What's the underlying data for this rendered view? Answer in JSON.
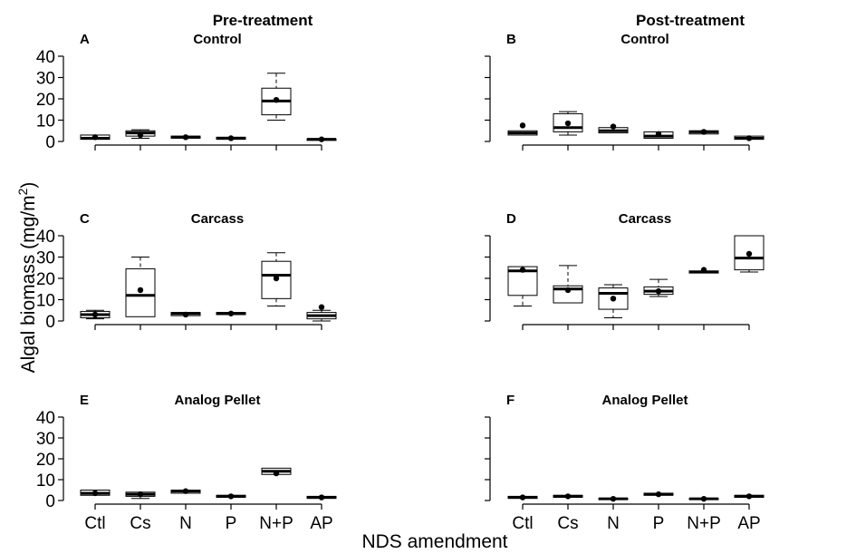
{
  "figure": {
    "ylabel": "Algal biomass (mg/m",
    "ylabel_sup": "2",
    "ylabel_close": ")",
    "xlabel": "NDS amendment",
    "col_titles": [
      "Pre-treatment",
      "Post-treatment"
    ]
  },
  "chart_data": [
    {
      "type": "box",
      "panel": "A",
      "title": "Control",
      "categories": [
        "Ctl",
        "Cs",
        "N",
        "P",
        "N+P",
        "AP"
      ],
      "ylim": [
        0,
        40
      ],
      "yticks": [
        0,
        10,
        20,
        30,
        40
      ],
      "boxes": [
        {
          "min": 1,
          "q1": 1,
          "median": 1.5,
          "q3": 3,
          "max": 3,
          "mean": 2
        },
        {
          "min": 1.5,
          "q1": 2.5,
          "median": 4,
          "q3": 5,
          "max": 5.5,
          "mean": 3
        },
        {
          "min": 1.5,
          "q1": 1.5,
          "median": 2,
          "q3": 2.5,
          "max": 2.5,
          "mean": 2
        },
        {
          "min": 1,
          "q1": 1,
          "median": 1.5,
          "q3": 2,
          "max": 2,
          "mean": 1.5
        },
        {
          "min": 10,
          "q1": 12.5,
          "median": 19,
          "q3": 25,
          "max": 32,
          "mean": 19.5
        },
        {
          "min": 0.5,
          "q1": 0.5,
          "median": 1,
          "q3": 1.2,
          "max": 1.2,
          "mean": 1
        }
      ]
    },
    {
      "type": "box",
      "panel": "B",
      "title": "Control",
      "categories": [
        "Ctl",
        "Cs",
        "N",
        "P",
        "N+P",
        "AP"
      ],
      "ylim": [
        0,
        40
      ],
      "yticks": [
        0,
        10,
        20,
        30,
        40
      ],
      "boxes": [
        {
          "min": 3,
          "q1": 3,
          "median": 4,
          "q3": 5,
          "max": 5,
          "mean": 7.5
        },
        {
          "min": 3,
          "q1": 4.5,
          "median": 6.5,
          "q3": 13,
          "max": 14,
          "mean": 8.5
        },
        {
          "min": 4,
          "q1": 4,
          "median": 5,
          "q3": 6.5,
          "max": 6.5,
          "mean": 7
        },
        {
          "min": 1.5,
          "q1": 1.5,
          "median": 2.5,
          "q3": 4.5,
          "max": 4.5,
          "mean": 3.5
        },
        {
          "min": 3.5,
          "q1": 3.5,
          "median": 4.5,
          "q3": 5,
          "max": 5,
          "mean": 4.5
        },
        {
          "min": 1,
          "q1": 1,
          "median": 1.5,
          "q3": 2.5,
          "max": 2.5,
          "mean": 1.5
        }
      ]
    },
    {
      "type": "box",
      "panel": "C",
      "title": "Carcass",
      "categories": [
        "Ctl",
        "Cs",
        "N",
        "P",
        "N+P",
        "AP"
      ],
      "ylim": [
        0,
        40
      ],
      "yticks": [
        0,
        10,
        20,
        30,
        40
      ],
      "boxes": [
        {
          "min": 1,
          "q1": 1.5,
          "median": 3,
          "q3": 4.5,
          "max": 5,
          "mean": 3
        },
        {
          "min": 2,
          "q1": 2,
          "median": 12,
          "q3": 24.5,
          "max": 30,
          "mean": 14.5
        },
        {
          "min": 2.5,
          "q1": 2.5,
          "median": 3.5,
          "q3": 4,
          "max": 4,
          "mean": 3
        },
        {
          "min": 3,
          "q1": 3,
          "median": 3.5,
          "q3": 4,
          "max": 4,
          "mean": 3.5
        },
        {
          "min": 7,
          "q1": 10.5,
          "median": 21.5,
          "q3": 28,
          "max": 32,
          "mean": 20
        },
        {
          "min": 0,
          "q1": 1,
          "median": 2.5,
          "q3": 4,
          "max": 5,
          "mean": 6.5
        }
      ]
    },
    {
      "type": "box",
      "panel": "D",
      "title": "Carcass",
      "categories": [
        "Ctl",
        "Cs",
        "N",
        "P",
        "N+P",
        "AP"
      ],
      "ylim": [
        0,
        40
      ],
      "yticks": [
        0,
        10,
        20,
        30,
        40
      ],
      "boxes": [
        {
          "min": 7,
          "q1": 12,
          "median": 23.5,
          "q3": 25.5,
          "max": 25.5,
          "mean": 24
        },
        {
          "min": 8.5,
          "q1": 8.5,
          "median": 15,
          "q3": 16.5,
          "max": 26,
          "mean": 14.5
        },
        {
          "min": 1.5,
          "q1": 5.5,
          "median": 13,
          "q3": 15.5,
          "max": 17,
          "mean": 10.5
        },
        {
          "min": 11.5,
          "q1": 12.5,
          "median": 14,
          "q3": 16,
          "max": 19.5,
          "mean": 14
        },
        {
          "min": 22.5,
          "q1": 22.5,
          "median": 23,
          "q3": 23.5,
          "max": 23.5,
          "mean": 24
        },
        {
          "min": 23,
          "q1": 24,
          "median": 29.5,
          "q3": 40,
          "max": 40,
          "mean": 31.5
        }
      ]
    },
    {
      "type": "box",
      "panel": "E",
      "title": "Analog Pellet",
      "categories": [
        "Ctl",
        "Cs",
        "N",
        "P",
        "N+P",
        "AP"
      ],
      "ylim": [
        0,
        40
      ],
      "yticks": [
        0,
        10,
        20,
        30,
        40
      ],
      "boxes": [
        {
          "min": 2.5,
          "q1": 2.5,
          "median": 3.5,
          "q3": 5,
          "max": 5,
          "mean": 3.5
        },
        {
          "min": 1,
          "q1": 2,
          "median": 3,
          "q3": 4,
          "max": 4,
          "mean": 3
        },
        {
          "min": 3.5,
          "q1": 3.5,
          "median": 4.5,
          "q3": 5,
          "max": 5,
          "mean": 4.5
        },
        {
          "min": 1.5,
          "q1": 1.5,
          "median": 2,
          "q3": 2.5,
          "max": 2.5,
          "mean": 2
        },
        {
          "min": 12.5,
          "q1": 12.5,
          "median": 14,
          "q3": 15.5,
          "max": 15.5,
          "mean": 13
        },
        {
          "min": 1,
          "q1": 1,
          "median": 1.5,
          "q3": 2,
          "max": 2,
          "mean": 1.5
        }
      ]
    },
    {
      "type": "box",
      "panel": "F",
      "title": "Analog Pellet",
      "categories": [
        "Ctl",
        "Cs",
        "N",
        "P",
        "N+P",
        "AP"
      ],
      "ylim": [
        0,
        40
      ],
      "yticks": [
        0,
        10,
        20,
        30,
        40
      ],
      "boxes": [
        {
          "min": 1,
          "q1": 1,
          "median": 1.5,
          "q3": 2,
          "max": 2,
          "mean": 1.5
        },
        {
          "min": 1.5,
          "q1": 1.5,
          "median": 2,
          "q3": 2.5,
          "max": 2.5,
          "mean": 2
        },
        {
          "min": 0.5,
          "q1": 0.5,
          "median": 0.8,
          "q3": 1,
          "max": 1,
          "mean": 0.8
        },
        {
          "min": 2.5,
          "q1": 2.5,
          "median": 3,
          "q3": 3.5,
          "max": 3.5,
          "mean": 3
        },
        {
          "min": 0.5,
          "q1": 0.5,
          "median": 0.8,
          "q3": 1,
          "max": 1,
          "mean": 0.8
        },
        {
          "min": 1.5,
          "q1": 1.5,
          "median": 2,
          "q3": 2.5,
          "max": 2.5,
          "mean": 2
        }
      ]
    }
  ]
}
